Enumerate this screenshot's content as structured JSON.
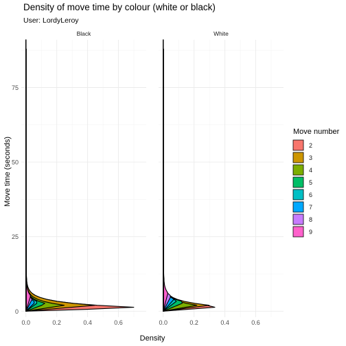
{
  "chart_data": {
    "type": "area",
    "title": "Density of move time by colour (white or black)",
    "subtitle": "User: LordyLeroy",
    "xlabel": "Density",
    "ylabel": "Move time (seconds)",
    "xlim": [
      -0.03,
      0.78
    ],
    "ylim": [
      -2,
      91
    ],
    "x_ticks": [
      0.0,
      0.2,
      0.4,
      0.6
    ],
    "x_tick_labels": [
      "0.0",
      "0.2",
      "0.4",
      "0.6"
    ],
    "y_ticks": [
      0,
      25,
      50,
      75
    ],
    "y_tick_labels": [
      "0",
      "25",
      "50",
      "75"
    ],
    "grid": true,
    "legend": {
      "title": "Move number",
      "position": "right",
      "entries": [
        {
          "label": "2",
          "color": "#F8766D"
        },
        {
          "label": "3",
          "color": "#CD9600"
        },
        {
          "label": "4",
          "color": "#7CAE00"
        },
        {
          "label": "5",
          "color": "#00BE67"
        },
        {
          "label": "6",
          "color": "#00BFC4"
        },
        {
          "label": "7",
          "color": "#00A9FF"
        },
        {
          "label": "8",
          "color": "#C77CFF"
        },
        {
          "label": "9",
          "color": "#FF61CC"
        }
      ]
    },
    "facets": [
      {
        "name": "Black",
        "series": [
          {
            "move": "2",
            "color": "#F8766D",
            "peak_x": 0.75,
            "peak_y": 1.2
          },
          {
            "move": "3",
            "color": "#CD9600",
            "peak_x": 0.45,
            "peak_y": 2.0
          },
          {
            "move": "4",
            "color": "#7CAE00",
            "peak_x": 0.25,
            "peak_y": 2.0
          },
          {
            "move": "5",
            "color": "#00BE67",
            "peak_x": 0.13,
            "peak_y": 2.5
          },
          {
            "move": "6",
            "color": "#00BFC4",
            "peak_x": 0.08,
            "peak_y": 3.0
          },
          {
            "move": "7",
            "color": "#00A9FF",
            "peak_x": 0.06,
            "peak_y": 3.0
          },
          {
            "move": "8",
            "color": "#C77CFF",
            "peak_x": 0.04,
            "peak_y": 4.0
          },
          {
            "move": "9",
            "color": "#FF61CC",
            "peak_x": 0.03,
            "peak_y": 5.0
          }
        ]
      },
      {
        "name": "White",
        "series": [
          {
            "move": "2",
            "color": "#F8766D",
            "peak_x": 0.38,
            "peak_y": 1.5
          },
          {
            "move": "3",
            "color": "#CD9600",
            "peak_x": 0.3,
            "peak_y": 2.0
          },
          {
            "move": "4",
            "color": "#7CAE00",
            "peak_x": 0.22,
            "peak_y": 2.0
          },
          {
            "move": "5",
            "color": "#00BE67",
            "peak_x": 0.14,
            "peak_y": 3.0
          },
          {
            "move": "6",
            "color": "#00BFC4",
            "peak_x": 0.09,
            "peak_y": 3.5
          },
          {
            "move": "7",
            "color": "#00A9FF",
            "peak_x": 0.07,
            "peak_y": 4.0
          },
          {
            "move": "8",
            "color": "#C77CFF",
            "peak_x": 0.05,
            "peak_y": 5.0
          },
          {
            "move": "9",
            "color": "#FF61CC",
            "peak_x": 0.03,
            "peak_y": 6.0
          }
        ]
      }
    ]
  }
}
